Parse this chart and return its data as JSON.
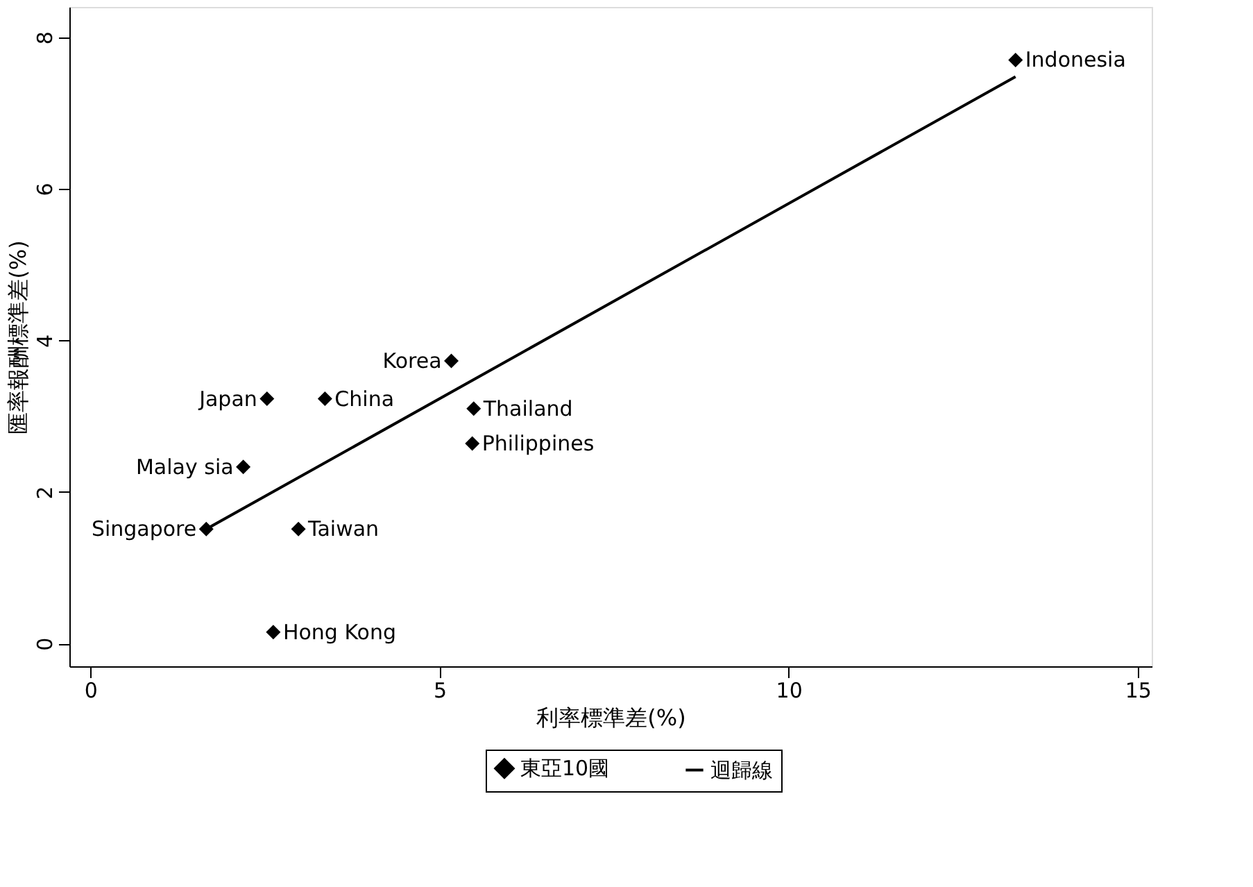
{
  "chart_data": {
    "type": "scatter",
    "xlabel": "利率標準差(%)",
    "ylabel": "匯率報酬標準差(%)",
    "xlim": [
      -0.3,
      15.2
    ],
    "xticks": [
      0,
      5,
      10,
      15
    ],
    "ylim": [
      -0.3,
      8.4
    ],
    "yticks": [
      0,
      2,
      4,
      6,
      8
    ],
    "grid": false,
    "legend": "bottom",
    "marker": "diamond",
    "series": [
      {
        "name": "東亞10國",
        "color": "#000000",
        "x": [
          13.25,
          5.17,
          2.53,
          3.36,
          5.49,
          5.47,
          2.19,
          1.66,
          2.98,
          2.62
        ],
        "values": [
          7.7,
          3.73,
          3.23,
          3.23,
          3.1,
          2.64,
          2.33,
          1.51,
          1.51,
          0.15
        ]
      },
      {
        "name": "迴歸線",
        "type": "line",
        "color": "#000000",
        "line_style": "solid",
        "marker": "none",
        "x": [
          1.66,
          13.25
        ],
        "values": [
          1.51,
          7.48
        ]
      }
    ],
    "annotations": [
      {
        "text": "Indonesia",
        "x": 13.25,
        "y": 7.7
      },
      {
        "text": "Korea",
        "x": 5.17,
        "y": 3.73
      },
      {
        "text": "Japan",
        "x": 2.53,
        "y": 3.23
      },
      {
        "text": "China",
        "x": 3.36,
        "y": 3.23
      },
      {
        "text": "Thailand",
        "x": 5.49,
        "y": 3.1
      },
      {
        "text": "Philippines",
        "x": 5.47,
        "y": 2.64
      },
      {
        "text": "Malay sia",
        "x": 2.19,
        "y": 2.33
      },
      {
        "text": "Singapore",
        "x": 1.66,
        "y": 1.51
      },
      {
        "text": "Taiwan",
        "x": 2.98,
        "y": 1.51
      },
      {
        "text": "Hong Kong",
        "x": 2.62,
        "y": 0.15
      }
    ]
  }
}
